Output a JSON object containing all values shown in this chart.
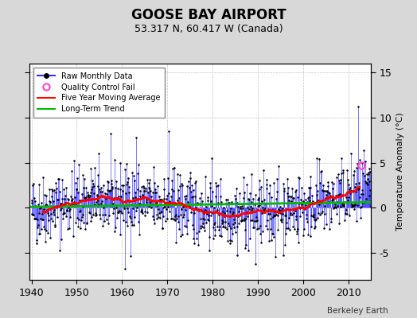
{
  "title": "GOOSE BAY AIRPORT",
  "subtitle": "53.317 N, 60.417 W (Canada)",
  "ylabel": "Temperature Anomaly (°C)",
  "credit": "Berkeley Earth",
  "start_year": 1940,
  "end_year": 2015,
  "ylim": [
    -8,
    16
  ],
  "yticks": [
    -5,
    0,
    5,
    10,
    15
  ],
  "xticks": [
    1940,
    1950,
    1960,
    1970,
    1980,
    1990,
    2000,
    2010
  ],
  "line_color": "#3333FF",
  "dot_color": "#000000",
  "ma_color": "#FF0000",
  "trend_color": "#00BB00",
  "qc_color": "#FF44CC",
  "background_color": "#FFFFFF",
  "fig_background": "#D8D8D8",
  "seed": 42
}
